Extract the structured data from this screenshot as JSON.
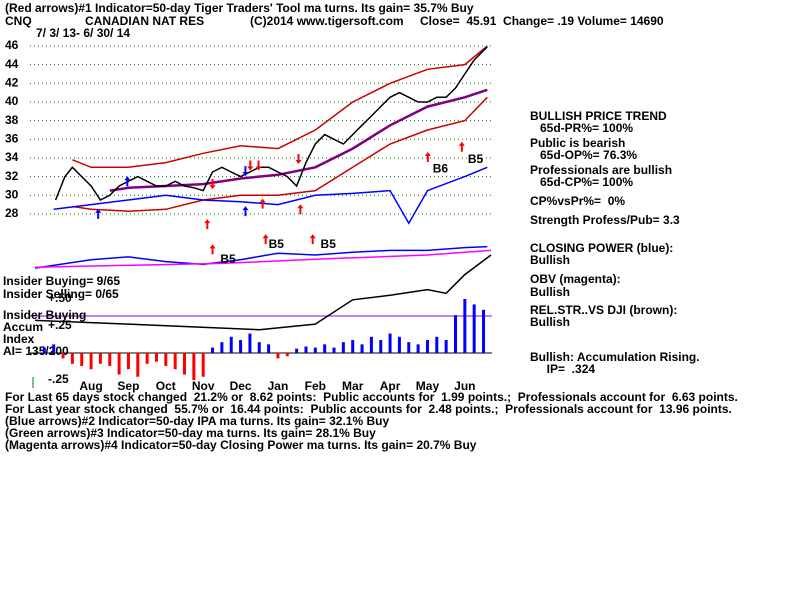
{
  "chart_data": [
    {
      "type": "line",
      "title": "(Red arrows)#1 Indicator=50-day Tiger Traders' Tool ma turns. Its gain= 35.7% Buy",
      "ticker": "CNQ",
      "company": "CANADIAN NAT RES",
      "copyright": "(C)2014 www.tigersoft.com",
      "quote": "Close=  45.91  Change= .19 Volume= 14690",
      "date_range": "7/ 3/ 13- 6/ 30/ 14",
      "xlim": [
        -0.5,
        11.7
      ],
      "xticks": [
        {
          "value": 1,
          "label": "Aug"
        },
        {
          "value": 2,
          "label": "Sep"
        },
        {
          "value": 3,
          "label": "Oct"
        },
        {
          "value": 4,
          "label": "Nov"
        },
        {
          "value": 5,
          "label": "Dec"
        },
        {
          "value": 6,
          "label": "Jan"
        },
        {
          "value": 7,
          "label": "Feb"
        },
        {
          "value": 8,
          "label": "Mar"
        },
        {
          "value": 9,
          "label": "Apr"
        },
        {
          "value": 10,
          "label": "May"
        },
        {
          "value": 11,
          "label": "Jun"
        }
      ],
      "ylim": [
        10.8,
        47.1
      ],
      "yticks": [
        28,
        30,
        32,
        34,
        36,
        38,
        40,
        42,
        44,
        46
      ],
      "grid": true,
      "grid_color": "#008000",
      "series": [
        {
          "color": "#cc0000",
          "x": [
            0.5,
            1,
            2,
            3,
            4,
            5,
            6,
            7,
            8,
            9,
            10,
            11,
            11.6
          ],
          "values": [
            33.8,
            33,
            33,
            33.5,
            34.5,
            35.3,
            35,
            37,
            40,
            42,
            43.5,
            44,
            46
          ]
        },
        {
          "color": "#cc0000",
          "x": [
            0.5,
            1,
            2,
            3,
            4,
            5,
            6,
            7,
            8,
            9,
            10,
            11,
            11.6
          ],
          "values": [
            28.8,
            28.5,
            28.3,
            28.5,
            29.5,
            30,
            30,
            30.5,
            33,
            35.5,
            37,
            38,
            40.5
          ]
        },
        {
          "color": "#800080",
          "x": [
            1.5,
            2,
            3,
            4,
            5,
            6,
            7,
            8,
            9,
            10,
            11,
            11.6
          ],
          "values": [
            30.5,
            30.8,
            31,
            31.2,
            31.8,
            32.2,
            33,
            35,
            37.5,
            39.5,
            40.5,
            41.3
          ]
        },
        {
          "color": "#000000",
          "x": [
            0.05,
            0.3,
            0.5,
            0.75,
            1,
            1.25,
            1.5,
            1.75,
            2,
            2.25,
            2.5,
            2.75,
            3,
            3.25,
            3.5,
            3.75,
            4,
            4.25,
            4.5,
            4.75,
            5,
            5.25,
            5.5,
            5.75,
            6,
            6.25,
            6.5,
            6.75,
            7,
            7.25,
            7.5,
            7.75,
            8,
            8.25,
            8.5,
            8.75,
            9,
            9.25,
            9.5,
            9.75,
            10,
            10.25,
            10.5,
            10.75,
            11,
            11.25,
            11.5,
            11.6
          ],
          "values": [
            29.5,
            32,
            33,
            32,
            31,
            29.5,
            30,
            31,
            31.5,
            32,
            31.5,
            31,
            31,
            31.5,
            31,
            30.8,
            30.5,
            32.5,
            33,
            32.5,
            32,
            32.5,
            33,
            33,
            32.5,
            32,
            31,
            33.5,
            35.5,
            36.5,
            36,
            35.5,
            36.5,
            37.5,
            38.5,
            39.5,
            40.5,
            41,
            40.5,
            40,
            40,
            40.5,
            40.5,
            41.5,
            43,
            44.5,
            45.5,
            45.91
          ]
        },
        {
          "color": "#0000ff",
          "x": [
            0,
            1,
            2,
            3,
            4,
            5,
            6,
            7,
            8,
            9,
            9.5,
            10,
            11,
            11.6
          ],
          "values": [
            28.5,
            29,
            29.5,
            30,
            29.5,
            29.3,
            29,
            30,
            30.2,
            30.5,
            27,
            30.5,
            32,
            33
          ]
        },
        {
          "color": "#0000ff",
          "x": [
            -0.5,
            1,
            2,
            3,
            4,
            5,
            6,
            7,
            8,
            9,
            10,
            11,
            11.6
          ],
          "values": [
            22.2,
            23.1,
            23.4,
            22.9,
            22.6,
            23.1,
            23.8,
            23.6,
            23.9,
            24.1,
            24.1,
            24.4,
            24.5
          ]
        },
        {
          "color": "#ff00ff",
          "x": [
            -0.5,
            4.5,
            7.3,
            10,
            11.7
          ],
          "values": [
            22.3,
            22.7,
            23.2,
            23.6,
            24.1
          ]
        },
        {
          "color": "#000000",
          "x": [
            -0.5,
            2,
            5.5,
            7,
            8,
            9,
            10,
            10.5,
            11,
            11.7
          ],
          "values": [
            16.6,
            16.2,
            15.6,
            16.2,
            18.8,
            19.3,
            19.9,
            19.5,
            21.5,
            23.6
          ]
        }
      ],
      "annotations": [
        {
          "text": "B5",
          "x": 4.46,
          "y": 23.1
        },
        {
          "text": "B5",
          "x": 5.75,
          "y": 24.7
        },
        {
          "text": "B5",
          "x": 7.14,
          "y": 24.7
        },
        {
          "text": "B6",
          "x": 10.14,
          "y": 32.8
        },
        {
          "text": "B5",
          "x": 11.08,
          "y": 33.8
        }
      ],
      "arrows": [
        {
          "x": 1.19,
          "y": 27.9,
          "color": "#0000ff",
          "dir": "up"
        },
        {
          "x": 1.97,
          "y": 31.4,
          "color": "#0000ff",
          "dir": "up"
        },
        {
          "x": 4.11,
          "y": 26.8,
          "color": "#ff0000",
          "dir": "up"
        },
        {
          "x": 4.25,
          "y": 31.3,
          "color": "#ff0000",
          "dir": "down"
        },
        {
          "x": 5.13,
          "y": 32.7,
          "color": "#0000ff",
          "dir": "down"
        },
        {
          "x": 5.26,
          "y": 33.3,
          "color": "#ff0000",
          "dir": "down"
        },
        {
          "x": 5.48,
          "y": 33.3,
          "color": "#ff0000",
          "dir": "down"
        },
        {
          "x": 5.13,
          "y": 28.2,
          "color": "#0000ff",
          "dir": "up"
        },
        {
          "x": 5.59,
          "y": 29,
          "color": "#ff0000",
          "dir": "up"
        },
        {
          "x": 6.6,
          "y": 28.4,
          "color": "#ff0000",
          "dir": "up"
        },
        {
          "x": 6.55,
          "y": 34,
          "color": "#ff0000",
          "dir": "down"
        },
        {
          "x": 5.67,
          "y": 25.2,
          "color": "#ff0000",
          "dir": "up"
        },
        {
          "x": 4.25,
          "y": 24.1,
          "color": "#ff0000",
          "dir": "up"
        },
        {
          "x": 6.93,
          "y": 25.2,
          "color": "#ff0000",
          "dir": "up"
        },
        {
          "x": 10.01,
          "y": 34,
          "color": "#ff0000",
          "dir": "up"
        },
        {
          "x": 10.92,
          "y": 35.1,
          "color": "#ff0000",
          "dir": "up"
        }
      ],
      "insider_labels": [
        "Insider Buying= 9/65",
        "Insider Selling= 0/65"
      ],
      "side_text": [
        "BULLISH PRICE TREND",
        "   65d-PR%= 100%",
        "Public is bearish",
        "   65d-OP%= 76.3%",
        "Professionals are bullish",
        "   65d-CP%= 100%",
        "CP%vsPr%=  0%",
        "Strength Profess/Pub= 3.3",
        "CLOSING POWER (blue):",
        "Bullish",
        "OBV (magenta):",
        "Bullish",
        "REL.STR..VS DJI (brown):",
        "Bullish",
        "Bullish: Accumulation Rising.",
        "     IP=  .324"
      ],
      "footer_text": [
        "For Last 65 days stock changed  21.2% or  8.62 points:  Public accounts for  1.99 points.;  Professionals account for  6.63 points.",
        "For Last year stock changed  55.7% or  16.44 points:  Public accounts for  2.48 points.;  Professionals account for  13.96 points.",
        "(Blue arrows)#2 Indicator=50-day IPA ma turns. Its gain= 32.1% Buy",
        "(Green arrows)#3 Indicator=50-day ma turns. Its gain= 28.1% Buy",
        "(Magenta arrows)#4 Indicator=50-day Closing Power ma turns. Its gain= 20.7% Buy"
      ]
    },
    {
      "type": "bar",
      "labels": [
        "Insider Buying",
        "Accum",
        "Index",
        "AI= 135/200"
      ],
      "xlim": [
        -0.5,
        11.7
      ],
      "ylim": [
        -0.3,
        0.55
      ],
      "yticks": [
        {
          "value": -0.25,
          "label": "-.25"
        },
        {
          "value": 0.25,
          "label": "+.25"
        },
        {
          "value": 0.5,
          "label": "+.50"
        }
      ],
      "positive_color": "#0000ff",
      "negative_color": "#ff0000",
      "x": [
        -0.25,
        0,
        0.25,
        0.5,
        0.75,
        1,
        1.25,
        1.5,
        1.75,
        2,
        2.25,
        2.5,
        2.75,
        3,
        3.25,
        3.5,
        3.75,
        4,
        4.25,
        4.5,
        4.75,
        5,
        5.25,
        5.5,
        5.75,
        6,
        6.25,
        6.5,
        6.75,
        7,
        7.25,
        7.5,
        7.75,
        8,
        8.25,
        8.5,
        8.75,
        9,
        9.25,
        9.5,
        9.75,
        10,
        10.25,
        10.5,
        10.75,
        11,
        11.25,
        11.5
      ],
      "values": [
        0.05,
        0.08,
        -0.05,
        -0.1,
        -0.12,
        -0.15,
        -0.1,
        -0.12,
        -0.2,
        -0.15,
        -0.22,
        -0.1,
        -0.08,
        -0.12,
        -0.15,
        -0.2,
        -0.25,
        -0.22,
        0.05,
        0.1,
        0.15,
        0.12,
        0.18,
        0.1,
        0.08,
        -0.05,
        -0.03,
        0.04,
        0.06,
        0.05,
        0.08,
        0.05,
        0.1,
        0.12,
        0.08,
        0.15,
        0.12,
        0.18,
        0.15,
        0.1,
        0.08,
        0.12,
        0.15,
        0.12,
        0.35,
        0.5,
        0.45,
        0.4
      ]
    }
  ]
}
